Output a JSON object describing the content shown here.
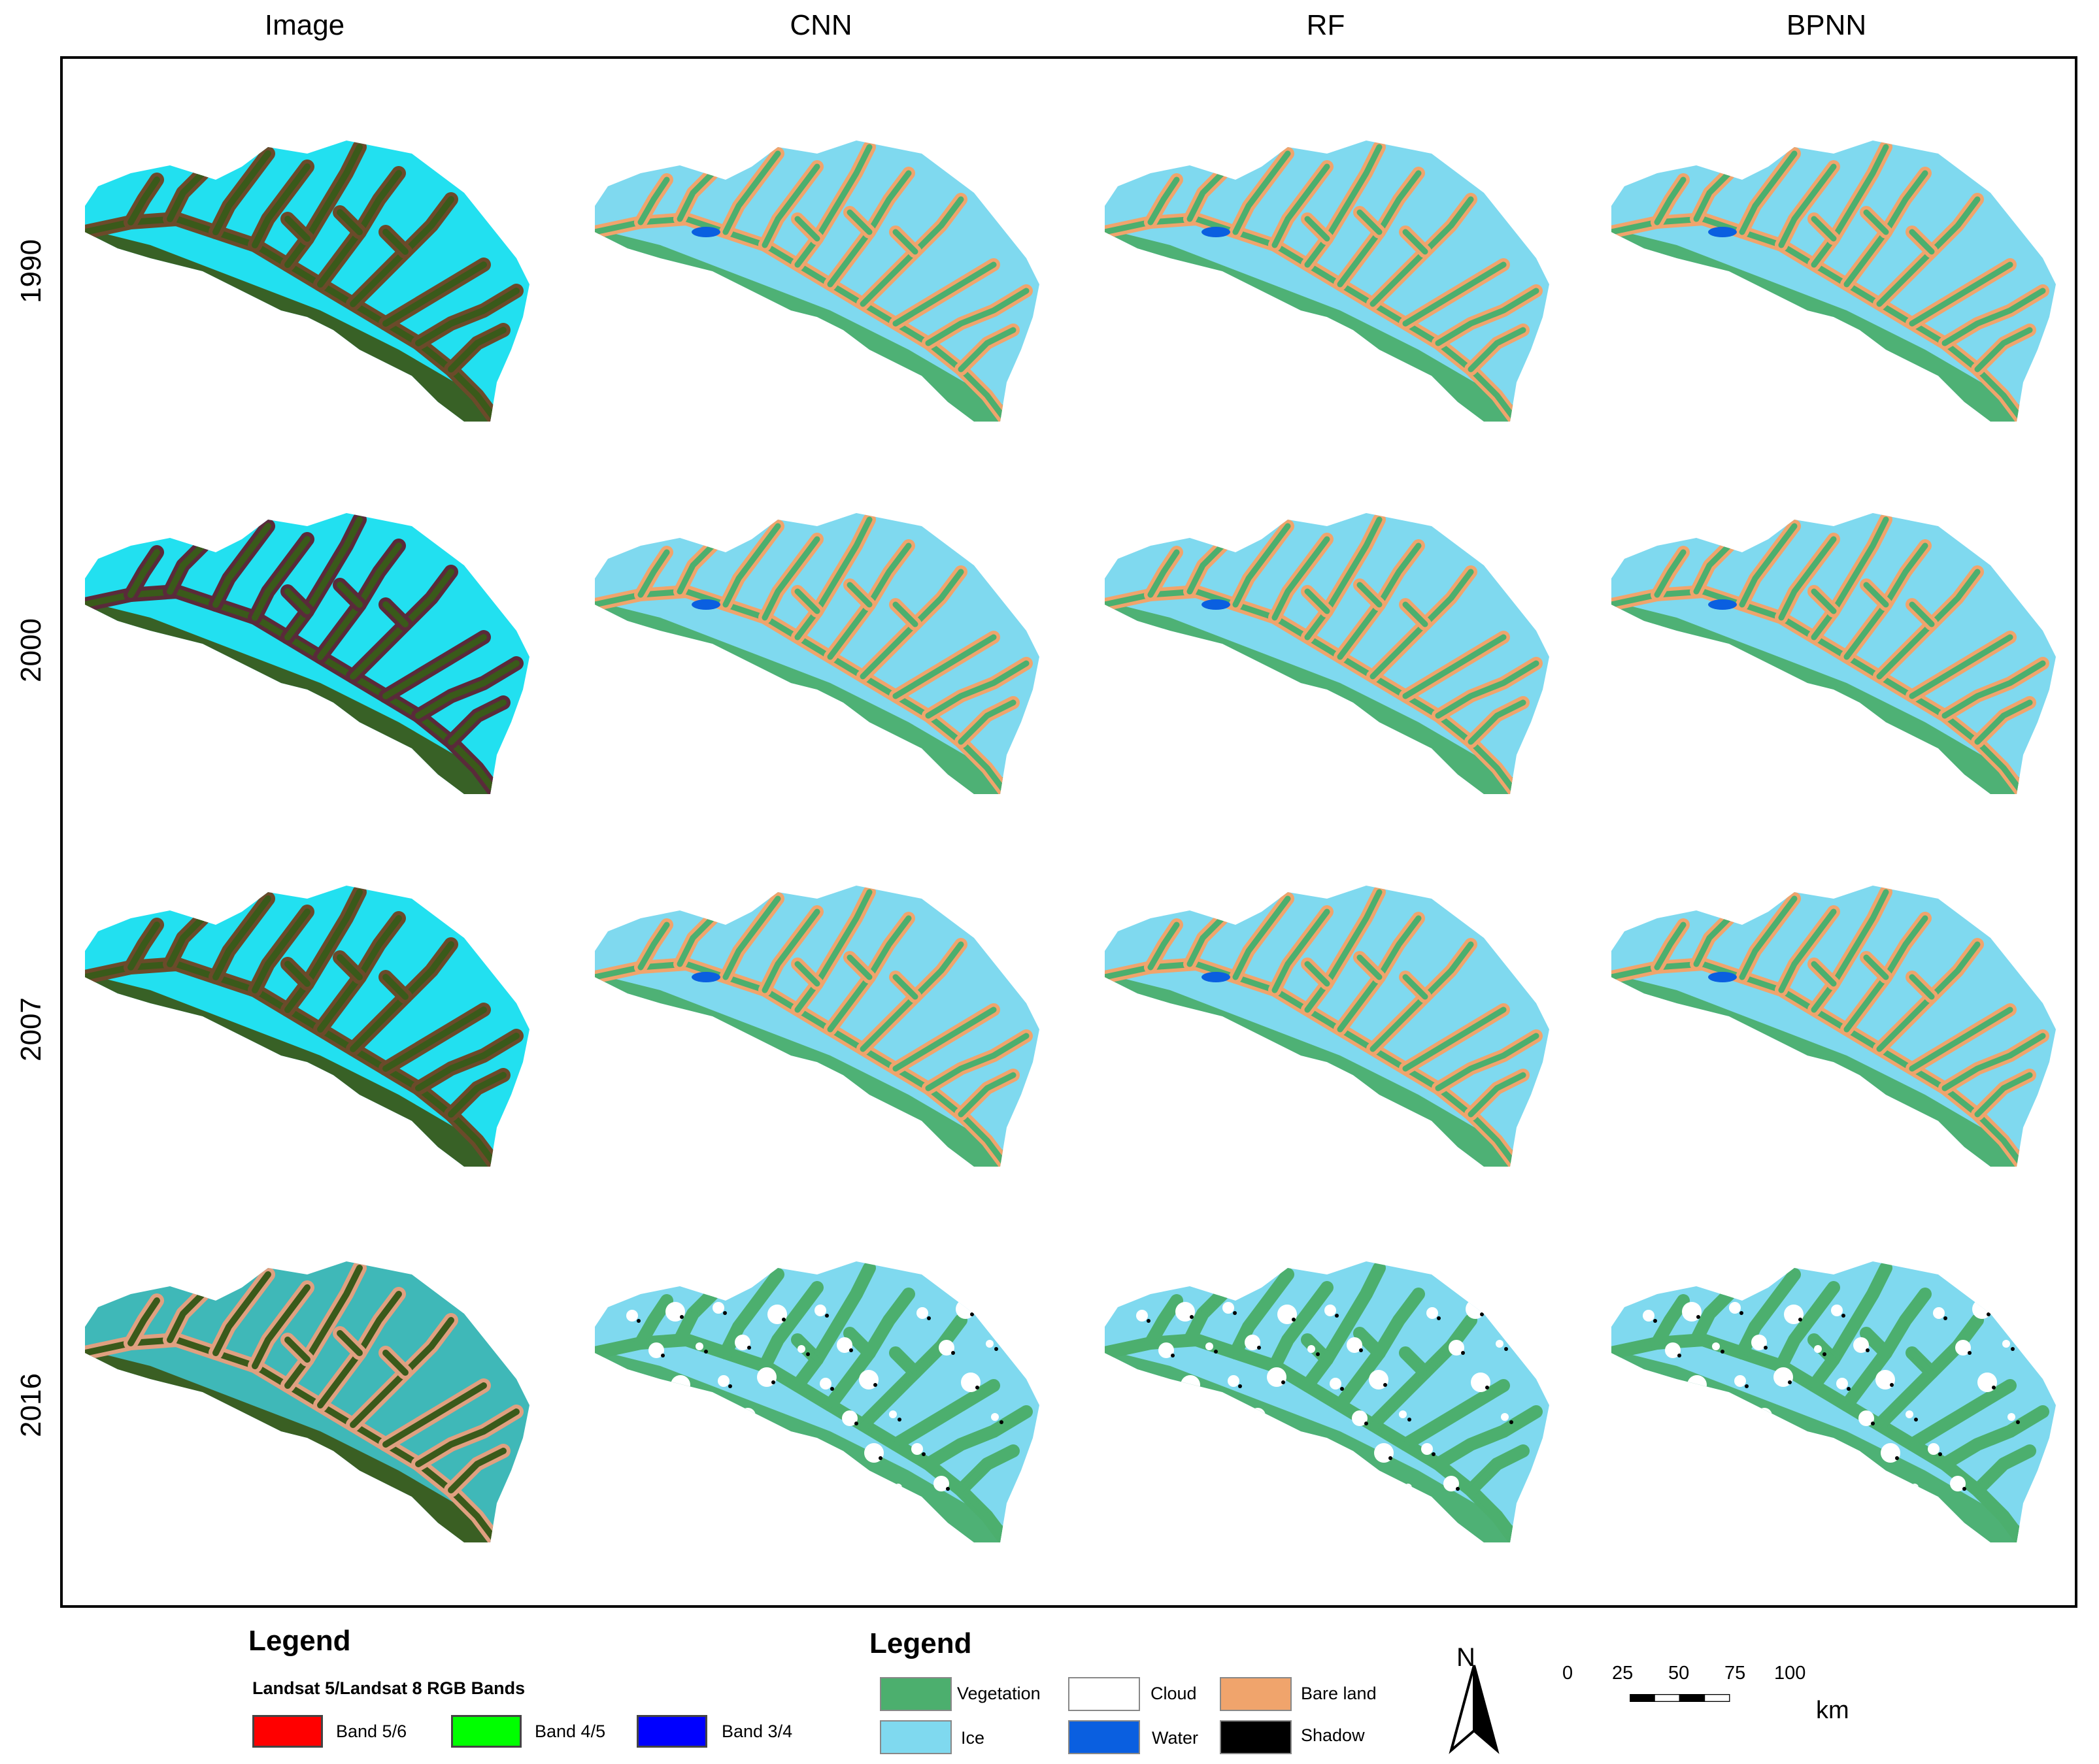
{
  "columns": [
    "Image",
    "CNN",
    "RF",
    "BPNN"
  ],
  "rows": [
    "1990",
    "2000",
    "2007",
    "2016"
  ],
  "legend_left": {
    "title": "Legend",
    "subtitle": "Landsat  5/Landsat 8 RGB Bands",
    "items": [
      {
        "label": "Band 5/6",
        "color": "#ff0000"
      },
      {
        "label": "Band 4/5",
        "color": "#00ff00"
      },
      {
        "label": "Band 3/4",
        "color": "#0000ff"
      }
    ]
  },
  "legend_right": {
    "title": "Legend",
    "items": [
      {
        "label": "Vegetation",
        "color": "#4caf6e"
      },
      {
        "label": "Cloud",
        "color": "#ffffff"
      },
      {
        "label": "Bare land",
        "color": "#f0a46c"
      },
      {
        "label": "Ice",
        "color": "#7fd9ef"
      },
      {
        "label": "Water",
        "color": "#0a5fe0"
      },
      {
        "label": "Shadow",
        "color": "#000000"
      }
    ]
  },
  "north_arrow": {
    "label": "N"
  },
  "scale_bar": {
    "ticks": [
      "0",
      "25",
      "50",
      "75",
      "100"
    ],
    "unit": "km"
  },
  "colors": {
    "satellite_ice": "#22e0f0",
    "satellite_valley": "#6b4a2a",
    "satellite_vegetation": "#3a5a1a",
    "satellite_2016_bare": "#e0a080",
    "class_ice": "#7fd9ef",
    "class_vegetation": "#4caf6e",
    "class_bare": "#f0a46c"
  }
}
